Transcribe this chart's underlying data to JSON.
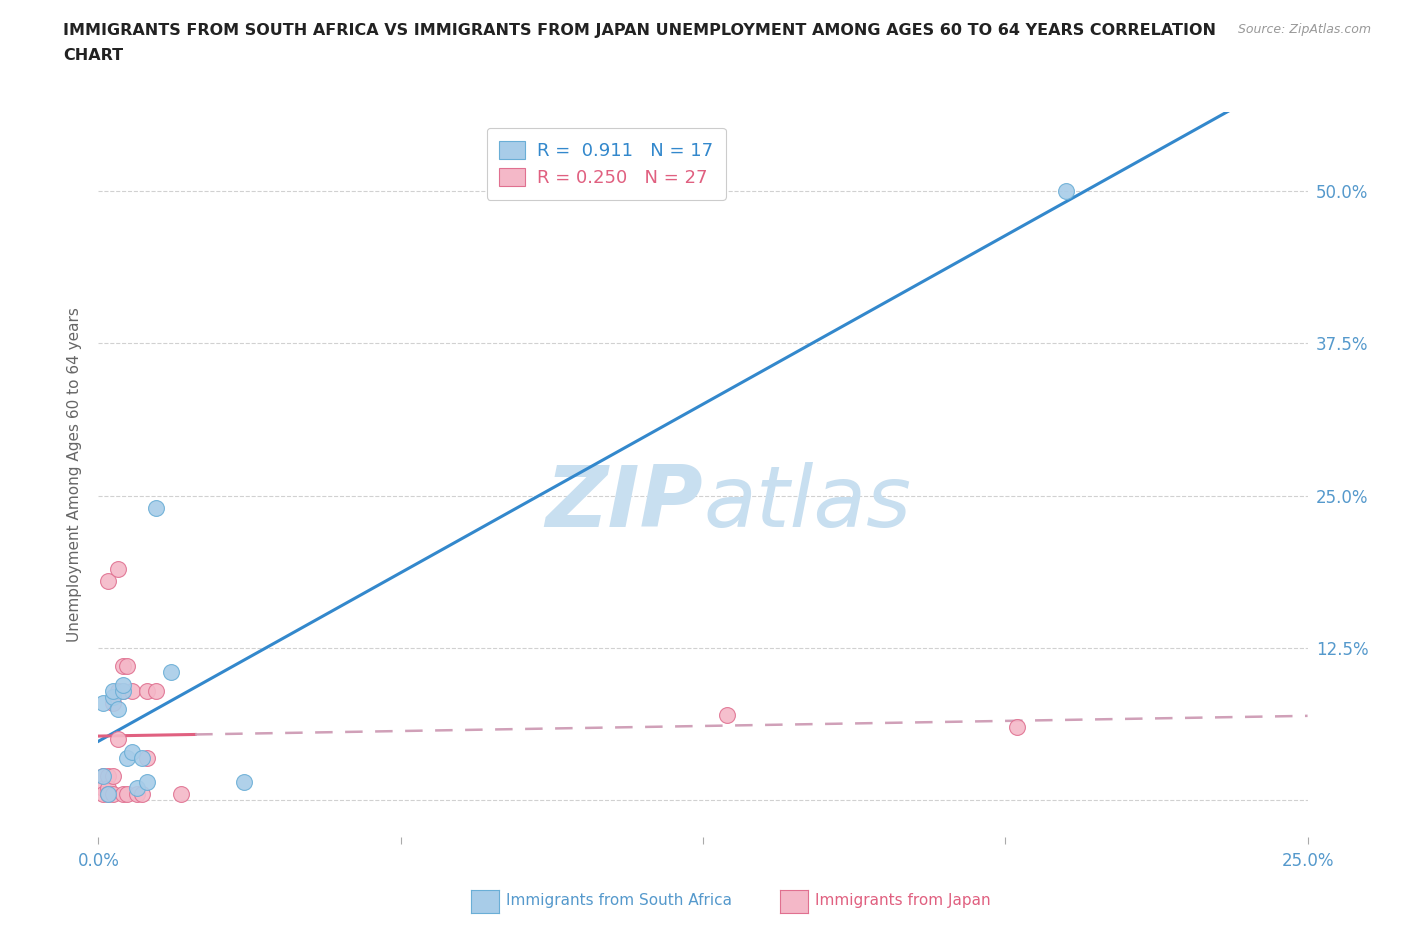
{
  "title_line1": "IMMIGRANTS FROM SOUTH AFRICA VS IMMIGRANTS FROM JAPAN UNEMPLOYMENT AMONG AGES 60 TO 64 YEARS CORRELATION",
  "title_line2": "CHART",
  "source": "Source: ZipAtlas.com",
  "ylabel": "Unemployment Among Ages 60 to 64 years",
  "xlim": [
    0.0,
    0.25
  ],
  "ylim": [
    -0.03,
    0.565
  ],
  "xticks": [
    0.0,
    0.0625,
    0.125,
    0.1875,
    0.25
  ],
  "xticklabels": [
    "0.0%",
    "",
    "",
    "",
    "25.0%"
  ],
  "yticks": [
    0.0,
    0.125,
    0.25,
    0.375,
    0.5
  ],
  "yticklabels": [
    "",
    "12.5%",
    "25.0%",
    "37.5%",
    "50.0%"
  ],
  "south_africa_x": [
    0.001,
    0.001,
    0.002,
    0.003,
    0.003,
    0.004,
    0.005,
    0.005,
    0.006,
    0.007,
    0.008,
    0.009,
    0.01,
    0.012,
    0.015,
    0.03,
    0.2
  ],
  "south_africa_y": [
    0.02,
    0.08,
    0.005,
    0.085,
    0.09,
    0.075,
    0.09,
    0.095,
    0.035,
    0.04,
    0.01,
    0.035,
    0.015,
    0.24,
    0.105,
    0.015,
    0.5
  ],
  "japan_x": [
    0.001,
    0.001,
    0.001,
    0.002,
    0.002,
    0.002,
    0.002,
    0.003,
    0.003,
    0.003,
    0.004,
    0.004,
    0.004,
    0.005,
    0.005,
    0.005,
    0.006,
    0.006,
    0.007,
    0.008,
    0.009,
    0.01,
    0.01,
    0.012,
    0.017,
    0.13,
    0.19
  ],
  "japan_y": [
    0.02,
    0.01,
    0.005,
    0.02,
    0.01,
    0.005,
    0.18,
    0.08,
    0.02,
    0.005,
    0.09,
    0.05,
    0.19,
    0.11,
    0.09,
    0.005,
    0.11,
    0.005,
    0.09,
    0.005,
    0.005,
    0.09,
    0.035,
    0.09,
    0.005,
    0.07,
    0.06
  ],
  "south_africa_R": "0.911",
  "south_africa_N": "17",
  "japan_R": "0.250",
  "japan_N": "27",
  "blue_scatter_color": "#a8cce8",
  "blue_scatter_edge": "#6aaed6",
  "pink_scatter_color": "#f4b8c8",
  "pink_scatter_edge": "#e07090",
  "blue_line_color": "#3388cc",
  "pink_line_color": "#e06080",
  "pink_dash_color": "#d0a0b8",
  "watermark_color": "#c8dff0",
  "background_color": "#ffffff",
  "grid_color": "#cccccc",
  "tick_color": "#5599cc",
  "legend_R_color": "#3388cc",
  "legend_N_color": "#555555"
}
